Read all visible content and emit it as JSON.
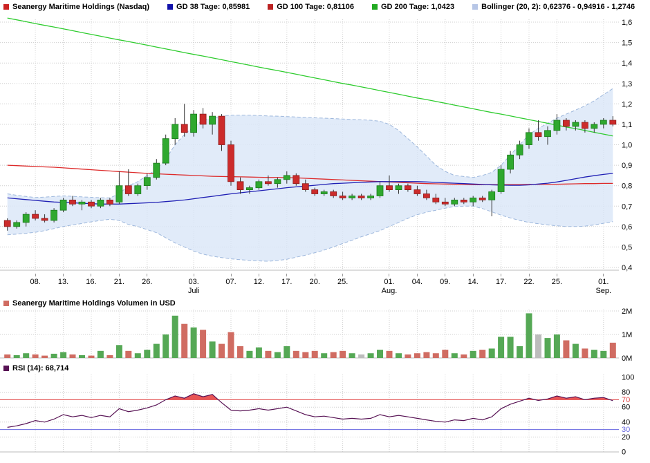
{
  "colors": {
    "up": "#2fa82f",
    "down": "#cc2b2b",
    "up_border": "#1b7a1b",
    "down_border": "#8c1d1d",
    "wick": "#333333",
    "gd38": "#1f1fb4",
    "gd100": "#dd2a2a",
    "gd200": "#2ecc2e",
    "boll_fill": "#d9e6f7",
    "boll_edge": "#9db7dc",
    "vol_up": "#55a855",
    "vol_down": "#d06c62",
    "vol_neutral": "#bcbcbc",
    "rsi_line": "#571254",
    "rsi_fill": "#e85555",
    "rsi_70": "#e04545",
    "rsi_30": "#6666e0",
    "grid": "#cfcfcf",
    "axis_text": "#000000"
  },
  "legend": {
    "items": [
      {
        "label": "Seanergy Maritime Holdings (Nasdaq)",
        "color": "#cc2222"
      },
      {
        "label": "GD 38 Tage: 0,85981",
        "color": "#1111aa"
      },
      {
        "label": "GD 100 Tage: 0,81106",
        "color": "#bb2222"
      },
      {
        "label": "GD 200 Tage: 1,0423",
        "color": "#22aa22"
      },
      {
        "label": "Bollinger (20, 2): 0,62376 - 0,94916 - 1,2746",
        "color": "#b7c6e6"
      }
    ]
  },
  "chart_data": [
    {
      "type": "candlestick",
      "title": "Seanergy Maritime Holdings (Nasdaq)",
      "ylim": [
        0.4,
        1.6
      ],
      "y_ticks": [
        [
          1.6,
          "1,6"
        ],
        [
          1.5,
          "1,5"
        ],
        [
          1.4,
          "1,4"
        ],
        [
          1.3,
          "1,3"
        ],
        [
          1.2,
          "1,2"
        ],
        [
          1.1,
          "1,1"
        ],
        [
          1.0,
          "1,0"
        ],
        [
          0.9,
          "0,9"
        ],
        [
          0.8,
          "0,8"
        ],
        [
          0.7,
          "0,7"
        ],
        [
          0.6,
          "0,6"
        ],
        [
          0.5,
          "0,5"
        ],
        [
          0.4,
          "0,4"
        ]
      ],
      "x_ticks": [
        {
          "i": 3,
          "l": "08."
        },
        {
          "i": 6,
          "l": "13."
        },
        {
          "i": 9,
          "l": "16."
        },
        {
          "i": 12,
          "l": "21."
        },
        {
          "i": 15,
          "l": "26."
        },
        {
          "i": 20,
          "l": "03.",
          "m": "Juli"
        },
        {
          "i": 24,
          "l": "07."
        },
        {
          "i": 27,
          "l": "12."
        },
        {
          "i": 30,
          "l": "17."
        },
        {
          "i": 33,
          "l": "20."
        },
        {
          "i": 36,
          "l": "25."
        },
        {
          "i": 41,
          "l": "01.",
          "m": "Aug."
        },
        {
          "i": 44,
          "l": "04."
        },
        {
          "i": 47,
          "l": "09."
        },
        {
          "i": 50,
          "l": "14."
        },
        {
          "i": 53,
          "l": "17."
        },
        {
          "i": 56,
          "l": "22."
        },
        {
          "i": 59,
          "l": "25."
        },
        {
          "i": 64,
          "l": "01.",
          "m": "Sep."
        }
      ],
      "candles": [
        [
          0.63,
          0.64,
          0.58,
          0.6
        ],
        [
          0.6,
          0.63,
          0.59,
          0.62
        ],
        [
          0.62,
          0.67,
          0.6,
          0.66
        ],
        [
          0.66,
          0.68,
          0.63,
          0.64
        ],
        [
          0.64,
          0.66,
          0.62,
          0.63
        ],
        [
          0.63,
          0.69,
          0.62,
          0.68
        ],
        [
          0.68,
          0.74,
          0.67,
          0.73
        ],
        [
          0.73,
          0.75,
          0.7,
          0.71
        ],
        [
          0.71,
          0.73,
          0.68,
          0.72
        ],
        [
          0.72,
          0.73,
          0.69,
          0.7
        ],
        [
          0.7,
          0.74,
          0.69,
          0.73
        ],
        [
          0.73,
          0.74,
          0.7,
          0.71
        ],
        [
          0.72,
          0.87,
          0.71,
          0.8
        ],
        [
          0.8,
          0.88,
          0.75,
          0.76
        ],
        [
          0.76,
          0.81,
          0.75,
          0.8
        ],
        [
          0.8,
          0.86,
          0.78,
          0.84
        ],
        [
          0.84,
          0.93,
          0.83,
          0.91
        ],
        [
          0.91,
          1.05,
          0.9,
          1.03
        ],
        [
          1.03,
          1.13,
          1.0,
          1.1
        ],
        [
          1.1,
          1.2,
          1.04,
          1.06
        ],
        [
          1.06,
          1.17,
          1.04,
          1.15
        ],
        [
          1.15,
          1.18,
          1.08,
          1.1
        ],
        [
          1.1,
          1.16,
          1.05,
          1.14
        ],
        [
          1.14,
          1.15,
          0.97,
          1.0
        ],
        [
          1.0,
          1.02,
          0.8,
          0.82
        ],
        [
          0.82,
          0.84,
          0.76,
          0.78
        ],
        [
          0.78,
          0.8,
          0.76,
          0.79
        ],
        [
          0.79,
          0.83,
          0.78,
          0.82
        ],
        [
          0.82,
          0.85,
          0.8,
          0.81
        ],
        [
          0.81,
          0.84,
          0.79,
          0.83
        ],
        [
          0.83,
          0.87,
          0.81,
          0.85
        ],
        [
          0.85,
          0.86,
          0.8,
          0.81
        ],
        [
          0.81,
          0.83,
          0.77,
          0.78
        ],
        [
          0.78,
          0.79,
          0.75,
          0.76
        ],
        [
          0.76,
          0.78,
          0.75,
          0.77
        ],
        [
          0.77,
          0.78,
          0.74,
          0.75
        ],
        [
          0.75,
          0.77,
          0.73,
          0.74
        ],
        [
          0.74,
          0.76,
          0.73,
          0.75
        ],
        [
          0.75,
          0.76,
          0.73,
          0.74
        ],
        [
          0.74,
          0.76,
          0.73,
          0.75
        ],
        [
          0.75,
          0.82,
          0.74,
          0.8
        ],
        [
          0.8,
          0.85,
          0.77,
          0.78
        ],
        [
          0.78,
          0.81,
          0.76,
          0.8
        ],
        [
          0.8,
          0.81,
          0.77,
          0.78
        ],
        [
          0.78,
          0.8,
          0.75,
          0.76
        ],
        [
          0.76,
          0.78,
          0.73,
          0.74
        ],
        [
          0.74,
          0.76,
          0.71,
          0.72
        ],
        [
          0.72,
          0.74,
          0.7,
          0.71
        ],
        [
          0.71,
          0.74,
          0.7,
          0.73
        ],
        [
          0.73,
          0.74,
          0.71,
          0.72
        ],
        [
          0.72,
          0.75,
          0.7,
          0.74
        ],
        [
          0.74,
          0.75,
          0.72,
          0.73
        ],
        [
          0.73,
          0.78,
          0.65,
          0.77
        ],
        [
          0.77,
          0.9,
          0.76,
          0.88
        ],
        [
          0.88,
          0.97,
          0.86,
          0.95
        ],
        [
          0.95,
          1.02,
          0.93,
          1.0
        ],
        [
          1.0,
          1.08,
          0.98,
          1.06
        ],
        [
          1.06,
          1.12,
          1.02,
          1.04
        ],
        [
          1.04,
          1.09,
          1.0,
          1.07
        ],
        [
          1.07,
          1.15,
          1.05,
          1.12
        ],
        [
          1.12,
          1.13,
          1.07,
          1.09
        ],
        [
          1.09,
          1.12,
          1.07,
          1.11
        ],
        [
          1.11,
          1.12,
          1.06,
          1.08
        ],
        [
          1.08,
          1.11,
          1.06,
          1.1
        ],
        [
          1.1,
          1.13,
          1.08,
          1.12
        ],
        [
          1.12,
          1.14,
          1.09,
          1.1
        ]
      ],
      "overlays": {
        "gd38": {
          "label": "GD 38 Tage",
          "value": "0,85981",
          "series": [
            0.74,
            0.736,
            0.732,
            0.728,
            0.724,
            0.72,
            0.718,
            0.716,
            0.714,
            0.712,
            0.71,
            0.71,
            0.71,
            0.712,
            0.714,
            0.716,
            0.718,
            0.722,
            0.726,
            0.73,
            0.736,
            0.742,
            0.748,
            0.754,
            0.76,
            0.765,
            0.77,
            0.775,
            0.78,
            0.785,
            0.79,
            0.794,
            0.798,
            0.802,
            0.806,
            0.81,
            0.812,
            0.814,
            0.816,
            0.818,
            0.82,
            0.82,
            0.82,
            0.82,
            0.82,
            0.818,
            0.816,
            0.814,
            0.812,
            0.81,
            0.808,
            0.806,
            0.804,
            0.803,
            0.802,
            0.802,
            0.804,
            0.808,
            0.812,
            0.818,
            0.826,
            0.834,
            0.842,
            0.849,
            0.855,
            0.86
          ]
        },
        "gd100": {
          "label": "GD 100 Tage",
          "value": "0,81106",
          "series": [
            0.9,
            0.898,
            0.896,
            0.894,
            0.892,
            0.89,
            0.887,
            0.884,
            0.881,
            0.878,
            0.875,
            0.872,
            0.869,
            0.866,
            0.863,
            0.86,
            0.858,
            0.856,
            0.854,
            0.852,
            0.85,
            0.848,
            0.846,
            0.845,
            0.844,
            0.843,
            0.842,
            0.841,
            0.84,
            0.84,
            0.839,
            0.838,
            0.836,
            0.834,
            0.832,
            0.83,
            0.828,
            0.826,
            0.824,
            0.822,
            0.82,
            0.818,
            0.816,
            0.814,
            0.812,
            0.81,
            0.809,
            0.808,
            0.807,
            0.806,
            0.805,
            0.805,
            0.805,
            0.805,
            0.805,
            0.805,
            0.806,
            0.806,
            0.807,
            0.807,
            0.808,
            0.809,
            0.81,
            0.81,
            0.811,
            0.811
          ]
        },
        "gd200": {
          "label": "GD 200 Tage",
          "value": "1,0423",
          "series": [
            1.62,
            1.611,
            1.602,
            1.593,
            1.584,
            1.576,
            1.567,
            1.558,
            1.549,
            1.54,
            1.531,
            1.522,
            1.513,
            1.505,
            1.496,
            1.487,
            1.478,
            1.469,
            1.46,
            1.451,
            1.442,
            1.434,
            1.425,
            1.416,
            1.407,
            1.398,
            1.389,
            1.38,
            1.371,
            1.363,
            1.354,
            1.345,
            1.336,
            1.327,
            1.318,
            1.309,
            1.3,
            1.292,
            1.283,
            1.274,
            1.265,
            1.256,
            1.247,
            1.238,
            1.229,
            1.221,
            1.212,
            1.203,
            1.194,
            1.185,
            1.176,
            1.167,
            1.158,
            1.15,
            1.141,
            1.132,
            1.123,
            1.114,
            1.105,
            1.096,
            1.087,
            1.079,
            1.07,
            1.061,
            1.052,
            1.043
          ]
        },
        "bollinger": {
          "label": "Bollinger (20, 2)",
          "value": "0,62376 - 0,94916 - 1,2746",
          "upper": [
            0.76,
            0.753,
            0.747,
            0.742,
            0.744,
            0.747,
            0.75,
            0.748,
            0.745,
            0.743,
            0.741,
            0.74,
            0.76,
            0.8,
            0.82,
            0.85,
            0.88,
            0.93,
            1.0,
            1.05,
            1.09,
            1.12,
            1.13,
            1.14,
            1.145,
            1.145,
            1.145,
            1.143,
            1.141,
            1.14,
            1.138,
            1.136,
            1.134,
            1.132,
            1.13,
            1.128,
            1.126,
            1.124,
            1.122,
            1.12,
            1.115,
            1.1,
            1.07,
            1.03,
            0.99,
            0.945,
            0.9,
            0.87,
            0.85,
            0.845,
            0.84,
            0.85,
            0.865,
            0.9,
            0.95,
            1.0,
            1.05,
            1.08,
            1.105,
            1.13,
            1.15,
            1.17,
            1.19,
            1.215,
            1.245,
            1.275
          ],
          "lower": [
            0.56,
            0.563,
            0.567,
            0.572,
            0.58,
            0.59,
            0.6,
            0.608,
            0.615,
            0.623,
            0.63,
            0.636,
            0.63,
            0.61,
            0.6,
            0.585,
            0.57,
            0.545,
            0.52,
            0.5,
            0.48,
            0.465,
            0.455,
            0.448,
            0.442,
            0.438,
            0.434,
            0.432,
            0.43,
            0.434,
            0.44,
            0.45,
            0.46,
            0.472,
            0.485,
            0.5,
            0.517,
            0.533,
            0.55,
            0.565,
            0.58,
            0.6,
            0.62,
            0.64,
            0.658,
            0.67,
            0.68,
            0.69,
            0.698,
            0.7,
            0.7,
            0.688,
            0.672,
            0.656,
            0.642,
            0.63,
            0.62,
            0.614,
            0.608,
            0.604,
            0.6,
            0.6,
            0.602,
            0.608,
            0.616,
            0.624
          ]
        }
      }
    },
    {
      "type": "bar",
      "legend": "Seanergy Maritime Holdings Volumen in USD",
      "legend_color": "#d06c62",
      "unit": "M",
      "ylim": [
        0,
        2
      ],
      "y_ticks": [
        [
          2,
          "2M"
        ],
        [
          1,
          "1M"
        ],
        [
          0,
          "0M"
        ]
      ],
      "values": [
        0.15,
        0.12,
        0.2,
        0.15,
        0.1,
        0.18,
        0.25,
        0.15,
        0.12,
        0.1,
        0.3,
        0.12,
        0.55,
        0.3,
        0.2,
        0.35,
        0.6,
        1.0,
        1.8,
        1.45,
        1.3,
        1.2,
        0.7,
        0.6,
        1.1,
        0.5,
        0.3,
        0.45,
        0.3,
        0.25,
        0.5,
        0.3,
        0.25,
        0.3,
        0.2,
        0.25,
        0.3,
        0.2,
        0.15,
        0.2,
        0.35,
        0.3,
        0.2,
        0.15,
        0.2,
        0.25,
        0.2,
        0.35,
        0.2,
        0.15,
        0.3,
        0.35,
        0.4,
        0.9,
        0.9,
        0.5,
        1.9,
        1.0,
        0.85,
        1.0,
        0.75,
        0.6,
        0.4,
        0.35,
        0.3,
        0.65
      ],
      "neutral_indices": [
        38,
        57
      ]
    },
    {
      "type": "line",
      "legend": "RSI (14): 68,714",
      "legend_color": "#571254",
      "current_value": "68,714",
      "ylim": [
        0,
        100
      ],
      "overbought": 70,
      "oversold": 30,
      "y_ticks": [
        [
          100,
          "100"
        ],
        [
          80,
          "80"
        ],
        [
          70,
          "70"
        ],
        [
          60,
          "60"
        ],
        [
          40,
          "40"
        ],
        [
          30,
          "30"
        ],
        [
          20,
          "20"
        ],
        [
          0,
          "0"
        ]
      ],
      "values": [
        33,
        35,
        38,
        42,
        40,
        44,
        50,
        47,
        49,
        46,
        49,
        47,
        58,
        54,
        56,
        59,
        63,
        70,
        75,
        72,
        78,
        74,
        77,
        66,
        56,
        55,
        56,
        58,
        56,
        58,
        60,
        55,
        50,
        47,
        48,
        46,
        44,
        45,
        44,
        45,
        50,
        47,
        49,
        47,
        45,
        43,
        41,
        40,
        43,
        42,
        45,
        43,
        47,
        58,
        64,
        68,
        72,
        69,
        71,
        75,
        72,
        74,
        70,
        72,
        73,
        68.7
      ]
    }
  ]
}
